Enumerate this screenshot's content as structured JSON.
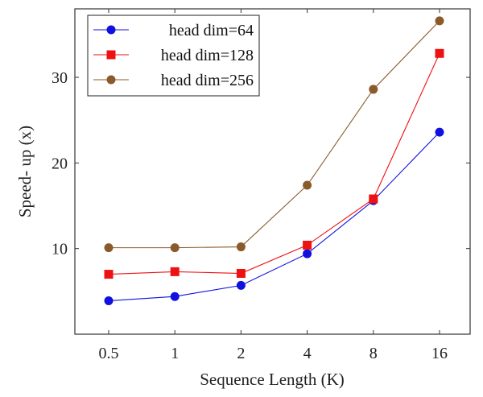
{
  "chart_data": {
    "type": "line",
    "title": "",
    "xlabel": "Sequence Length (K)",
    "ylabel": "Speed- up (x)",
    "categories": [
      "0.5",
      "1",
      "2",
      "4",
      "8",
      "16"
    ],
    "ylim": [
      0,
      38
    ],
    "yticks": [
      10,
      20,
      30
    ],
    "grid": false,
    "legend_position": "top-left",
    "series": [
      {
        "name": "head dim=64",
        "color": "#1010e0",
        "marker": "circle",
        "values": [
          3.9,
          4.4,
          5.7,
          9.4,
          15.6,
          23.6
        ]
      },
      {
        "name": "head dim=128",
        "color": "#ee1111",
        "marker": "square",
        "values": [
          7.0,
          7.3,
          7.1,
          10.4,
          15.8,
          32.8
        ]
      },
      {
        "name": "head dim=256",
        "color": "#8b5a2b",
        "marker": "circle",
        "values": [
          10.1,
          10.1,
          10.2,
          17.4,
          28.6,
          36.6
        ]
      }
    ]
  }
}
